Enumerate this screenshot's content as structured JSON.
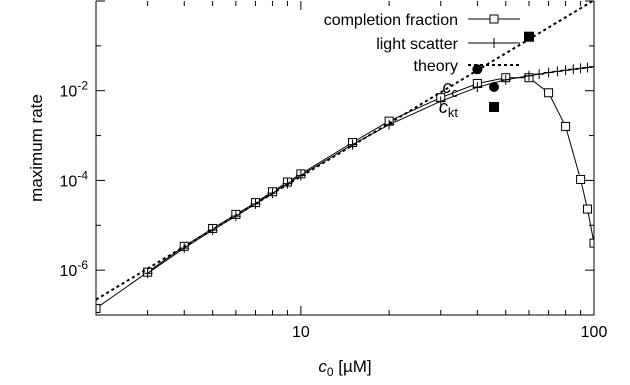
{
  "chart_data": {
    "type": "line",
    "title": "",
    "xlabel": {
      "var": "c",
      "sub": "0",
      "unit": " [µM]"
    },
    "ylabel": "maximum rate",
    "xscale": "log",
    "yscale": "log",
    "xlim": [
      2,
      100
    ],
    "ylim": [
      1e-07,
      1.0
    ],
    "grid": false,
    "legend_position": "top-right",
    "xticks": [
      {
        "value": 10,
        "label": "10"
      },
      {
        "value": 100,
        "label": "100"
      }
    ],
    "yticks": [
      {
        "value": 1e-06,
        "base": "10",
        "exp": "-6"
      },
      {
        "value": 0.0001,
        "base": "10",
        "exp": "-4"
      },
      {
        "value": 0.01,
        "base": "10",
        "exp": "-2"
      }
    ],
    "series": [
      {
        "name": "completion fraction",
        "style": "line-open-square",
        "color": "#000000",
        "x": [
          2,
          3,
          4,
          5,
          6,
          7,
          8,
          9,
          10,
          15,
          20,
          30,
          40,
          50,
          60,
          70,
          80,
          90,
          95,
          100
        ],
        "y": [
          1.4e-07,
          9e-07,
          3.4e-06,
          8.5e-06,
          1.75e-05,
          3.2e-05,
          5.6e-05,
          9.2e-05,
          0.00014,
          0.0007,
          0.0021,
          0.007,
          0.0145,
          0.0195,
          0.0195,
          0.009,
          0.0016,
          0.000105,
          2.3e-05,
          4e-06
        ]
      },
      {
        "name": "light scatter",
        "style": "line-plus",
        "color": "#000000",
        "x": [
          3,
          4,
          5,
          6,
          7,
          8,
          9,
          10,
          15,
          20,
          30,
          40,
          50,
          60,
          65,
          70,
          75,
          80,
          85,
          90,
          95,
          100
        ],
        "y": [
          8.5e-07,
          3.1e-06,
          7.8e-06,
          1.6e-05,
          3e-05,
          5.2e-05,
          8.5e-05,
          0.00013,
          0.00063,
          0.00175,
          0.0058,
          0.012,
          0.0175,
          0.0215,
          0.0235,
          0.0255,
          0.027,
          0.0285,
          0.03,
          0.0315,
          0.033,
          0.0345
        ]
      },
      {
        "name": "theory",
        "style": "dotted-line",
        "color": "#000000",
        "x": [
          2,
          100
        ],
        "y": [
          2.2e-07,
          1.04
        ]
      }
    ],
    "markers": [
      {
        "name": "c_c",
        "label_var": "c",
        "label_sub": "c",
        "shape": "circle",
        "x": 40,
        "y": 0.03
      },
      {
        "name": "c_kt",
        "label_var": "c",
        "label_sub": "kt",
        "shape": "square",
        "x": 60,
        "y": 0.16
      }
    ]
  }
}
